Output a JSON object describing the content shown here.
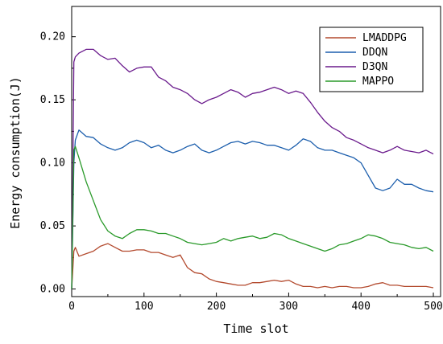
{
  "chart_data": {
    "type": "line",
    "title": "",
    "xlabel": "Time slot",
    "ylabel": "Energy consumption(J)",
    "xlim": [
      0,
      510
    ],
    "ylim": [
      -0.006,
      0.224
    ],
    "xticks": [
      0,
      100,
      200,
      300,
      400,
      500
    ],
    "xtick_labels": [
      "0",
      "100",
      "200",
      "300",
      "400",
      "500"
    ],
    "yticks": [
      0.0,
      0.05,
      0.1,
      0.15,
      0.2
    ],
    "ytick_labels": [
      "0.00",
      "0.05",
      "0.10",
      "0.15",
      "0.20"
    ],
    "grid": false,
    "legend_position": "top-right",
    "x": [
      0,
      3,
      5,
      10,
      20,
      30,
      40,
      50,
      60,
      70,
      80,
      90,
      100,
      110,
      120,
      130,
      140,
      150,
      160,
      170,
      180,
      190,
      200,
      210,
      220,
      230,
      240,
      250,
      260,
      270,
      280,
      290,
      300,
      310,
      320,
      330,
      340,
      350,
      360,
      370,
      380,
      390,
      400,
      410,
      420,
      430,
      440,
      450,
      460,
      470,
      480,
      490,
      500
    ],
    "series": [
      {
        "name": "LMADDPG",
        "color": "#b34a2e",
        "values": [
          0.0,
          0.03,
          0.033,
          0.026,
          0.028,
          0.03,
          0.034,
          0.036,
          0.033,
          0.03,
          0.03,
          0.031,
          0.031,
          0.029,
          0.029,
          0.027,
          0.025,
          0.027,
          0.017,
          0.013,
          0.012,
          0.008,
          0.006,
          0.005,
          0.004,
          0.003,
          0.003,
          0.005,
          0.005,
          0.006,
          0.007,
          0.006,
          0.007,
          0.004,
          0.002,
          0.002,
          0.001,
          0.002,
          0.001,
          0.002,
          0.002,
          0.001,
          0.001,
          0.002,
          0.004,
          0.005,
          0.003,
          0.003,
          0.002,
          0.002,
          0.002,
          0.002,
          0.001
        ]
      },
      {
        "name": "DDQN",
        "color": "#1d5fad",
        "values": [
          0.0,
          0.1,
          0.118,
          0.126,
          0.121,
          0.12,
          0.115,
          0.112,
          0.11,
          0.112,
          0.116,
          0.118,
          0.116,
          0.112,
          0.114,
          0.11,
          0.108,
          0.11,
          0.113,
          0.115,
          0.11,
          0.108,
          0.11,
          0.113,
          0.116,
          0.117,
          0.115,
          0.117,
          0.116,
          0.114,
          0.114,
          0.112,
          0.11,
          0.114,
          0.119,
          0.117,
          0.112,
          0.11,
          0.11,
          0.108,
          0.106,
          0.104,
          0.1,
          0.09,
          0.08,
          0.078,
          0.08,
          0.087,
          0.083,
          0.083,
          0.08,
          0.078,
          0.077
        ]
      },
      {
        "name": "D3QN",
        "color": "#6a1a8c",
        "values": [
          0.0,
          0.18,
          0.184,
          0.187,
          0.19,
          0.19,
          0.185,
          0.182,
          0.183,
          0.177,
          0.172,
          0.175,
          0.176,
          0.176,
          0.168,
          0.165,
          0.16,
          0.158,
          0.155,
          0.15,
          0.147,
          0.15,
          0.152,
          0.155,
          0.158,
          0.156,
          0.152,
          0.155,
          0.156,
          0.158,
          0.16,
          0.158,
          0.155,
          0.157,
          0.155,
          0.148,
          0.14,
          0.133,
          0.128,
          0.125,
          0.12,
          0.118,
          0.115,
          0.112,
          0.11,
          0.108,
          0.11,
          0.113,
          0.11,
          0.109,
          0.108,
          0.11,
          0.107
        ]
      },
      {
        "name": "MAPPO",
        "color": "#2a9a2a",
        "values": [
          0.0,
          0.11,
          0.113,
          0.104,
          0.085,
          0.07,
          0.055,
          0.046,
          0.042,
          0.04,
          0.044,
          0.047,
          0.047,
          0.046,
          0.044,
          0.044,
          0.042,
          0.04,
          0.037,
          0.036,
          0.035,
          0.036,
          0.037,
          0.04,
          0.038,
          0.04,
          0.041,
          0.042,
          0.04,
          0.041,
          0.044,
          0.043,
          0.04,
          0.038,
          0.036,
          0.034,
          0.032,
          0.03,
          0.032,
          0.035,
          0.036,
          0.038,
          0.04,
          0.043,
          0.042,
          0.04,
          0.037,
          0.036,
          0.035,
          0.033,
          0.032,
          0.033,
          0.03
        ]
      }
    ]
  }
}
